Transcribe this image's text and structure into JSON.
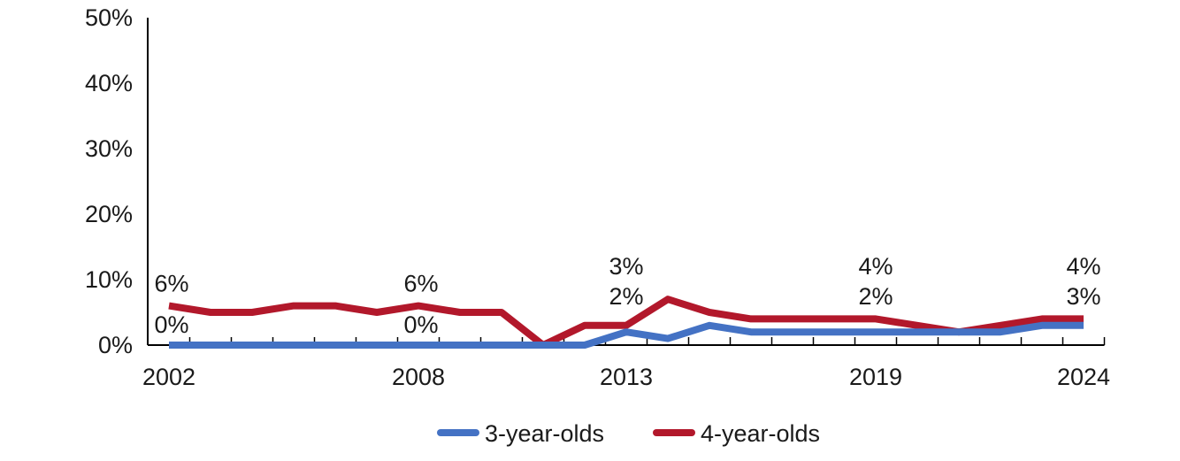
{
  "chart_data": {
    "type": "line",
    "x": [
      2002,
      2003,
      2004,
      2005,
      2006,
      2007,
      2008,
      2009,
      2010,
      2011,
      2012,
      2013,
      2014,
      2015,
      2016,
      2017,
      2018,
      2019,
      2020,
      2021,
      2022,
      2023,
      2024
    ],
    "x_tick_labels": [
      "2002",
      "2008",
      "2013",
      "2019",
      "2024"
    ],
    "x_tick_years": [
      2002,
      2008,
      2013,
      2019,
      2024
    ],
    "y_tick_labels": [
      "0%",
      "10%",
      "20%",
      "30%",
      "40%",
      "50%"
    ],
    "y_tick_values": [
      0,
      10,
      20,
      30,
      40,
      50
    ],
    "ylim": [
      0,
      50
    ],
    "y_unit": "%",
    "grid": false,
    "legend_position": "bottom-center",
    "series": [
      {
        "name": "3-year-olds",
        "color": "#4472c4",
        "values": [
          0,
          0,
          0,
          0,
          0,
          0,
          0,
          0,
          0,
          0,
          0,
          2,
          1,
          3,
          2,
          2,
          2,
          2,
          2,
          2,
          2,
          3,
          3
        ]
      },
      {
        "name": "4-year-olds",
        "color": "#b2182b",
        "values": [
          6,
          5,
          5,
          6,
          6,
          5,
          6,
          5,
          5,
          0,
          3,
          3,
          7,
          5,
          4,
          4,
          4,
          4,
          3,
          2,
          3,
          4,
          4
        ]
      }
    ],
    "data_labels": [
      {
        "series": "4-year-olds",
        "x": 2002,
        "text": "6%"
      },
      {
        "series": "3-year-olds",
        "x": 2002,
        "text": "0%"
      },
      {
        "series": "4-year-olds",
        "x": 2008,
        "text": "6%"
      },
      {
        "series": "3-year-olds",
        "x": 2008,
        "text": "0%"
      },
      {
        "series": "4-year-olds",
        "x": 2013,
        "text": "3%"
      },
      {
        "series": "3-year-olds",
        "x": 2013,
        "text": "2%"
      },
      {
        "series": "4-year-olds",
        "x": 2019,
        "text": "4%"
      },
      {
        "series": "3-year-olds",
        "x": 2019,
        "text": "2%"
      },
      {
        "series": "4-year-olds",
        "x": 2024,
        "text": "4%"
      },
      {
        "series": "3-year-olds",
        "x": 2024,
        "text": "3%"
      }
    ]
  }
}
